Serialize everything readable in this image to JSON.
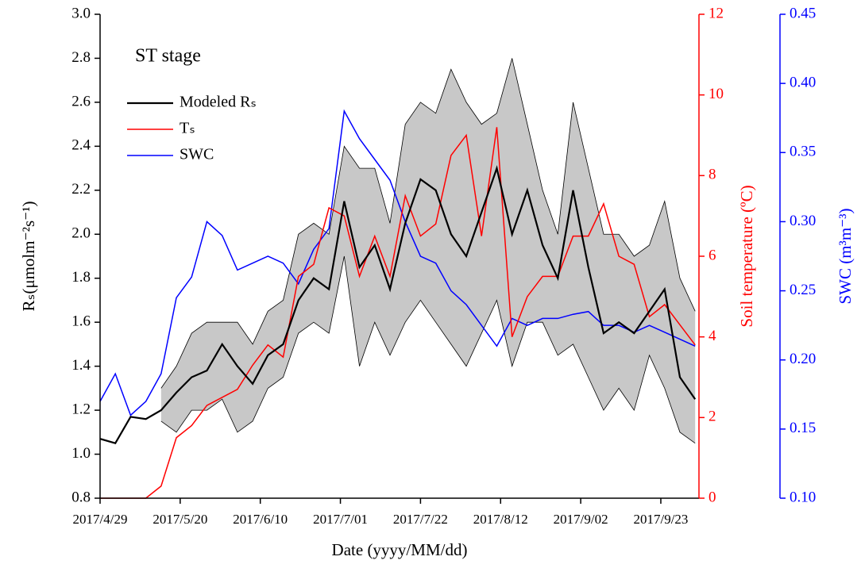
{
  "chart_data": {
    "type": "line",
    "title": "ST stage",
    "x_label": "Date (yyyy/MM/dd)",
    "y_label": "Rₛ(μmolm⁻²s⁻¹)",
    "y2_label": "Soil temperature (ºC)",
    "y3_label": "SWC (m³m⁻³)",
    "x": [
      "2017/4/29",
      "2017/5/3",
      "2017/5/7",
      "2017/5/11",
      "2017/5/15",
      "2017/5/19",
      "2017/5/23",
      "2017/5/27",
      "2017/5/31",
      "2017/6/4",
      "2017/6/8",
      "2017/6/12",
      "2017/6/16",
      "2017/6/20",
      "2017/6/24",
      "2017/6/28",
      "2017/7/2",
      "2017/7/6",
      "2017/7/10",
      "2017/7/14",
      "2017/7/18",
      "2017/7/22",
      "2017/7/26",
      "2017/7/30",
      "2017/8/3",
      "2017/8/7",
      "2017/8/11",
      "2017/8/15",
      "2017/8/19",
      "2017/8/23",
      "2017/8/27",
      "2017/8/31",
      "2017/9/4",
      "2017/9/8",
      "2017/9/12",
      "2017/9/16",
      "2017/9/20",
      "2017/9/24",
      "2017/9/28",
      "2017/10/2"
    ],
    "xlim": [
      "2017/4/29",
      "2017/10/3"
    ],
    "xticks": [
      "2017/4/29",
      "2017/5/20",
      "2017/6/10",
      "2017/7/01",
      "2017/7/22",
      "2017/8/12",
      "2017/9/02",
      "2017/9/23"
    ],
    "ylim": [
      0.8,
      3.0
    ],
    "yticks": [
      0.8,
      {
        "value": 1,
        "label": "1.0"
      },
      1.2,
      1.4,
      1.6,
      1.8,
      {
        "value": 2,
        "label": "2.0"
      },
      2.2,
      2.4,
      2.6,
      2.8,
      {
        "value": 3,
        "label": "3.0"
      }
    ],
    "y2lim": [
      0,
      12
    ],
    "y2ticks": [
      0,
      2,
      4,
      6,
      8,
      10,
      12
    ],
    "y2color": "#ff0000",
    "y3lim": [
      0.1,
      0.45
    ],
    "y3ticks": [
      {
        "value": 0.1,
        "label": "0.10"
      },
      0.15,
      {
        "value": 0.2,
        "label": "0.20"
      },
      0.25,
      {
        "value": 0.3,
        "label": "0.30"
      },
      0.35,
      {
        "value": 0.4,
        "label": "0.40"
      },
      0.45
    ],
    "y3color": "#0000ff",
    "band": {
      "color": "#c8c8c8",
      "upper": [
        null,
        null,
        null,
        null,
        1.3,
        1.4,
        1.55,
        1.6,
        1.6,
        1.6,
        1.5,
        1.65,
        1.7,
        2.0,
        2.05,
        2.0,
        2.4,
        2.3,
        2.3,
        2.05,
        2.5,
        2.6,
        2.55,
        2.75,
        2.6,
        2.5,
        2.55,
        2.8,
        2.5,
        2.2,
        2.0,
        2.6,
        2.3,
        2.0,
        2.0,
        1.9,
        1.95,
        2.15,
        1.8,
        1.65
      ],
      "lower": [
        null,
        null,
        null,
        null,
        1.15,
        1.1,
        1.2,
        1.2,
        1.25,
        1.1,
        1.15,
        1.3,
        1.35,
        1.55,
        1.6,
        1.55,
        1.9,
        1.4,
        1.6,
        1.45,
        1.6,
        1.7,
        1.6,
        1.5,
        1.4,
        1.55,
        1.7,
        1.4,
        1.6,
        1.6,
        1.45,
        1.5,
        1.35,
        1.2,
        1.3,
        1.2,
        1.45,
        1.3,
        1.1,
        1.05
      ]
    },
    "series": [
      {
        "name": "Modeled Rₛ",
        "color": "#000000",
        "axis": "y",
        "values": [
          1.07,
          1.05,
          1.17,
          1.16,
          1.2,
          1.28,
          1.35,
          1.38,
          1.5,
          1.4,
          1.32,
          1.45,
          1.5,
          1.7,
          1.8,
          1.75,
          2.15,
          1.85,
          1.95,
          1.75,
          2.05,
          2.25,
          2.2,
          2.0,
          1.9,
          2.1,
          2.3,
          2.0,
          2.2,
          1.95,
          1.8,
          2.2,
          1.85,
          1.55,
          1.6,
          1.55,
          1.65,
          1.75,
          1.35,
          1.25
        ]
      },
      {
        "name": "Tₛ",
        "color": "#ff0000",
        "axis": "y2",
        "values": [
          0,
          0,
          0,
          0,
          0.3,
          1.5,
          1.8,
          2.3,
          2.5,
          2.7,
          3.3,
          3.8,
          3.5,
          5.5,
          5.8,
          7.2,
          7.0,
          5.5,
          6.5,
          5.5,
          7.5,
          6.5,
          6.8,
          8.5,
          9.0,
          6.5,
          9.2,
          4.0,
          5.0,
          5.5,
          5.5,
          6.5,
          6.5,
          7.3,
          6.0,
          5.8,
          4.5,
          4.8,
          4.3,
          3.8
        ]
      },
      {
        "name": "SWC",
        "color": "#0000ff",
        "axis": "y3",
        "values": [
          0.17,
          0.19,
          0.16,
          0.17,
          0.19,
          0.245,
          0.26,
          0.3,
          0.29,
          0.265,
          0.27,
          0.275,
          0.27,
          0.255,
          0.28,
          0.295,
          0.38,
          0.36,
          0.345,
          0.33,
          0.3,
          0.275,
          0.27,
          0.25,
          0.24,
          0.225,
          0.21,
          0.23,
          0.225,
          0.23,
          0.23,
          0.233,
          0.235,
          0.225,
          0.225,
          0.22,
          0.225,
          0.22,
          0.215,
          0.21
        ]
      }
    ]
  }
}
